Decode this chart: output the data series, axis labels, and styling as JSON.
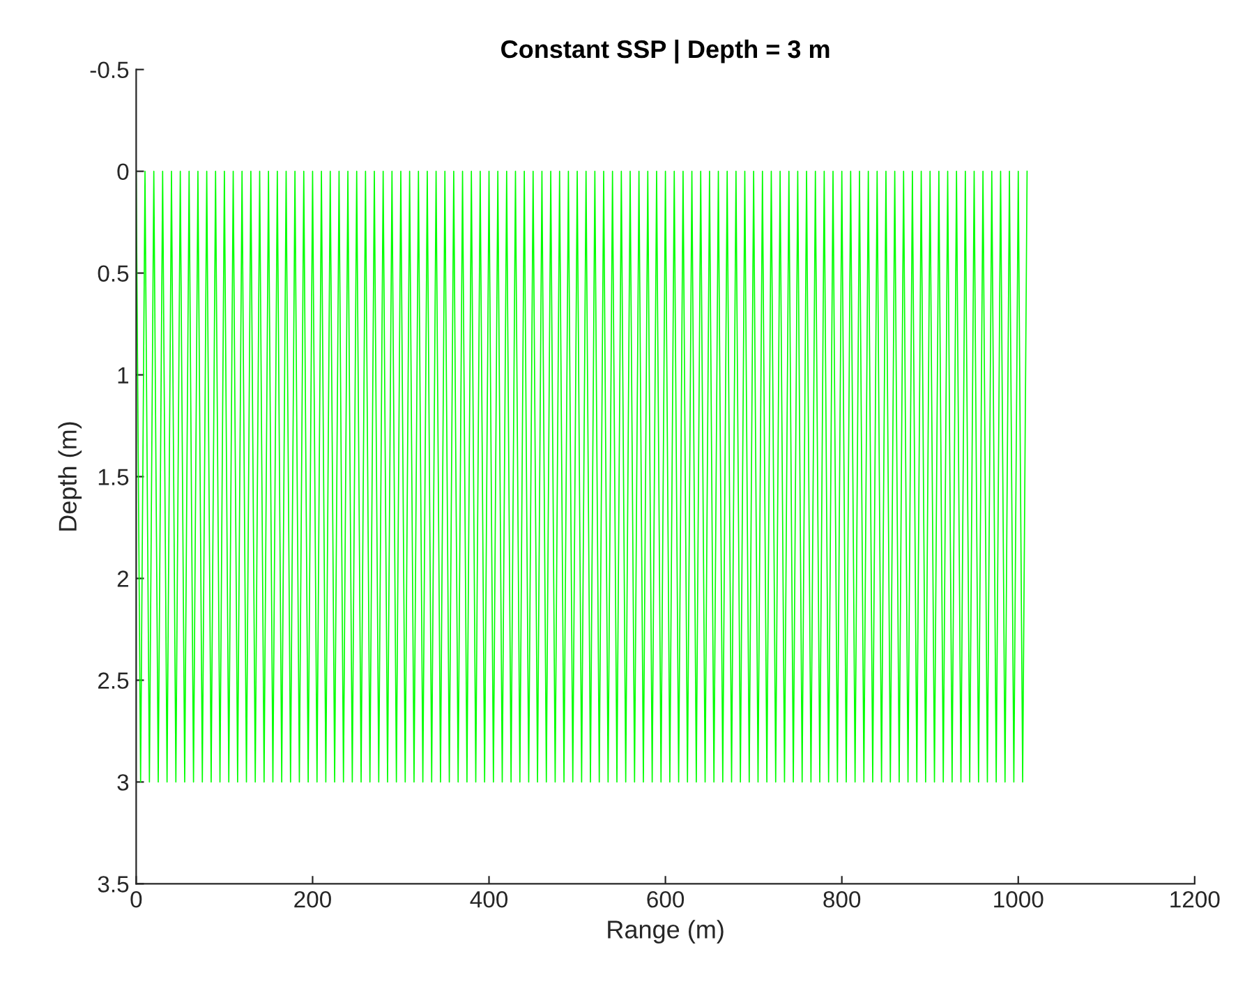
{
  "chart_data": {
    "type": "line",
    "title": "Constant SSP | Depth = 3 m",
    "xlabel": "Range (m)",
    "ylabel": "Depth (m)",
    "xlim": [
      0,
      1200
    ],
    "xticks": [
      0,
      200,
      400,
      600,
      800,
      1000,
      1200
    ],
    "ylim": [
      3.5,
      -0.5
    ],
    "yticks": [
      -0.5,
      0,
      0.5,
      1,
      1.5,
      2,
      2.5,
      3,
      3.5
    ],
    "grid": false,
    "series": [
      {
        "color": "#00ff00",
        "x": [
          0,
          5,
          10,
          15,
          20,
          25,
          30,
          35,
          40,
          45,
          50,
          55,
          60,
          65,
          70,
          75,
          80,
          85,
          90,
          95,
          100,
          105,
          110,
          115,
          120,
          125,
          130,
          135,
          140,
          145,
          150,
          155,
          160,
          165,
          170,
          175,
          180,
          185,
          190,
          195,
          200,
          205,
          210,
          215,
          220,
          225,
          230,
          235,
          240,
          245,
          250,
          255,
          260,
          265,
          270,
          275,
          280,
          285,
          290,
          295,
          300,
          305,
          310,
          315,
          320,
          325,
          330,
          335,
          340,
          345,
          350,
          355,
          360,
          365,
          370,
          375,
          380,
          385,
          390,
          395,
          400,
          405,
          410,
          415,
          420,
          425,
          430,
          435,
          440,
          445,
          450,
          455,
          460,
          465,
          470,
          475,
          480,
          485,
          490,
          495,
          500,
          505,
          510,
          515,
          520,
          525,
          530,
          535,
          540,
          545,
          550,
          555,
          560,
          565,
          570,
          575,
          580,
          585,
          590,
          595,
          600,
          605,
          610,
          615,
          620,
          625,
          630,
          635,
          640,
          645,
          650,
          655,
          660,
          665,
          670,
          675,
          680,
          685,
          690,
          695,
          700,
          705,
          710,
          715,
          720,
          725,
          730,
          735,
          740,
          745,
          750,
          755,
          760,
          765,
          770,
          775,
          780,
          785,
          790,
          795,
          800,
          805,
          810,
          815,
          820,
          825,
          830,
          835,
          840,
          845,
          850,
          855,
          860,
          865,
          870,
          875,
          880,
          885,
          890,
          895,
          900,
          905,
          910,
          915,
          920,
          925,
          930,
          935,
          940,
          945,
          950,
          955,
          960,
          965,
          970,
          975,
          980,
          985,
          990,
          995,
          1000,
          1005,
          1010
        ],
        "values": [
          0,
          3,
          0,
          3,
          0,
          3,
          0,
          3,
          0,
          3,
          0,
          3,
          0,
          3,
          0,
          3,
          0,
          3,
          0,
          3,
          0,
          3,
          0,
          3,
          0,
          3,
          0,
          3,
          0,
          3,
          0,
          3,
          0,
          3,
          0,
          3,
          0,
          3,
          0,
          3,
          0,
          3,
          0,
          3,
          0,
          3,
          0,
          3,
          0,
          3,
          0,
          3,
          0,
          3,
          0,
          3,
          0,
          3,
          0,
          3,
          0,
          3,
          0,
          3,
          0,
          3,
          0,
          3,
          0,
          3,
          0,
          3,
          0,
          3,
          0,
          3,
          0,
          3,
          0,
          3,
          0,
          3,
          0,
          3,
          0,
          3,
          0,
          3,
          0,
          3,
          0,
          3,
          0,
          3,
          0,
          3,
          0,
          3,
          0,
          3,
          0,
          3,
          0,
          3,
          0,
          3,
          0,
          3,
          0,
          3,
          0,
          3,
          0,
          3,
          0,
          3,
          0,
          3,
          0,
          3,
          0,
          3,
          0,
          3,
          0,
          3,
          0,
          3,
          0,
          3,
          0,
          3,
          0,
          3,
          0,
          3,
          0,
          3,
          0,
          3,
          0,
          3,
          0,
          3,
          0,
          3,
          0,
          3,
          0,
          3,
          0,
          3,
          0,
          3,
          0,
          3,
          0,
          3,
          0,
          3,
          0,
          3,
          0,
          3,
          0,
          3,
          0,
          3,
          0,
          3,
          0,
          3,
          0,
          3,
          0,
          3,
          0,
          3,
          0,
          3,
          0,
          3,
          0,
          3,
          0,
          3,
          0,
          3,
          0,
          3,
          0,
          3,
          0,
          3,
          0,
          3,
          0,
          3,
          0,
          3,
          0,
          3,
          0
        ]
      }
    ]
  }
}
